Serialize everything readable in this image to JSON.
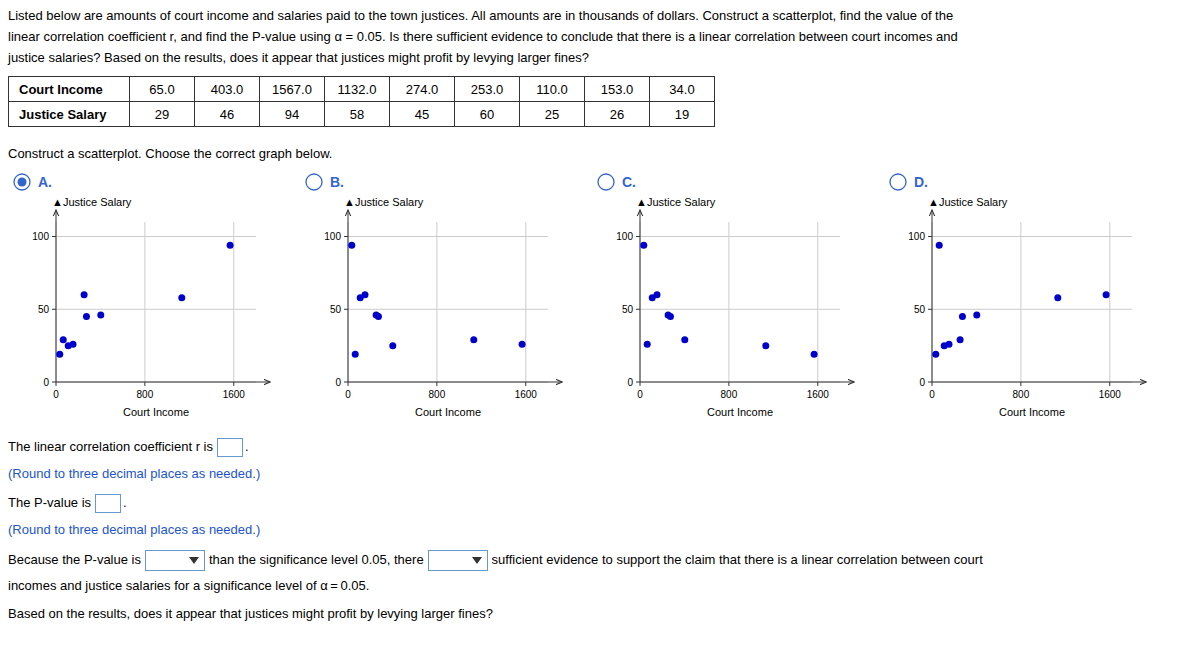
{
  "paragraph": [
    "Listed below are amounts of court income and salaries paid to the town justices. All amounts are in thousands of dollars. Construct a scatterplot, find the value of the",
    "linear correlation coefficient r, and find the P-value using α = 0.05. Is there sufficient evidence to conclude that there is a linear correlation between court incomes and",
    "justice salaries? Based on the results, does it appear that justices might profit by levying larger fines?"
  ],
  "table": {
    "rows": [
      {
        "name": "Court Income",
        "values": [
          65.0,
          403.0,
          1567.0,
          1132.0,
          274.0,
          253.0,
          110.0,
          153.0,
          34.0
        ],
        "value_labels": [
          "65.0",
          "403.0",
          "1567.0",
          "1132.0",
          "274.0",
          "253.0",
          "110.0",
          "153.0",
          "34.0"
        ]
      },
      {
        "name": "Justice Salary",
        "values": [
          29,
          46,
          94,
          58,
          45,
          60,
          25,
          26,
          19
        ]
      }
    ]
  },
  "prompt": "Construct a scatterplot. Choose the correct graph below.",
  "selected_option": "A.",
  "chart_data": [
    {
      "type": "scatter",
      "title": "A.",
      "xlabel": "Court Income",
      "ylabel": "▲Justice Salary",
      "x": [
        65.0,
        403.0,
        1567.0,
        1132.0,
        274.0,
        253.0,
        110.0,
        153.0,
        34.0
      ],
      "values": [
        29,
        46,
        94,
        58,
        45,
        60,
        25,
        26,
        19
      ],
      "xlim": [
        0,
        1800
      ],
      "ylim": [
        0,
        110
      ],
      "xticks": [
        0,
        800,
        1600
      ],
      "yticks": [
        0,
        50,
        100
      ],
      "color": "#0000cc",
      "grid": true
    },
    {
      "type": "scatter",
      "title": "B.",
      "xlabel": "Court Income",
      "ylabel": "▲Justice Salary",
      "x": [
        65.0,
        403.0,
        1567.0,
        1132.0,
        274.0,
        253.0,
        110.0,
        153.0,
        34.0
      ],
      "values": [
        19,
        25,
        26,
        29,
        45,
        46,
        58,
        60,
        94
      ],
      "xlim": [
        0,
        1800
      ],
      "ylim": [
        0,
        110
      ],
      "xticks": [
        0,
        800,
        1600
      ],
      "yticks": [
        0,
        50,
        100
      ],
      "color": "#0000cc",
      "grid": true
    },
    {
      "type": "scatter",
      "title": "C.",
      "xlabel": "Court Income",
      "ylabel": "▲Justice Salary",
      "x": [
        34.0,
        110.0,
        153.0,
        253.0,
        274.0,
        403.0,
        1132.0,
        1567.0,
        65.0
      ],
      "values": [
        94,
        58,
        60,
        46,
        45,
        29,
        25,
        19,
        26
      ],
      "xlim": [
        0,
        1800
      ],
      "ylim": [
        0,
        110
      ],
      "xticks": [
        0,
        800,
        1600
      ],
      "yticks": [
        0,
        50,
        100
      ],
      "color": "#0000cc",
      "grid": true
    },
    {
      "type": "scatter",
      "title": "D.",
      "xlabel": "Court Income",
      "ylabel": "▲Justice Salary",
      "x": [
        34.0,
        110.0,
        153.0,
        253.0,
        274.0,
        403.0,
        1132.0,
        1567.0,
        65.0
      ],
      "values": [
        19,
        25,
        26,
        29,
        45,
        46,
        58,
        60,
        94
      ],
      "xlim": [
        0,
        1800
      ],
      "ylim": [
        0,
        110
      ],
      "xticks": [
        0,
        800,
        1600
      ],
      "yticks": [
        0,
        50,
        100
      ],
      "color": "#0000cc",
      "grid": true
    }
  ],
  "fill_in": [
    {
      "parts": [
        "The linear correlation coefficient r is",
        "."
      ],
      "note": "(Round to three decimal places as needed.)"
    },
    {
      "parts": [
        "The P-value is",
        "."
      ],
      "note": "(Round to three decimal places as needed.)"
    }
  ],
  "choose": {
    "parts": [
      "Because the P-value is",
      "than the significance level 0.05, there",
      "sufficient evidence to support the claim that there is a linear correlation between court"
    ]
  },
  "closing": [
    "incomes and justice salaries for a significance level of α = 0.05.",
    "Based on the results, does it appear that justices might profit by levying larger fines?"
  ]
}
